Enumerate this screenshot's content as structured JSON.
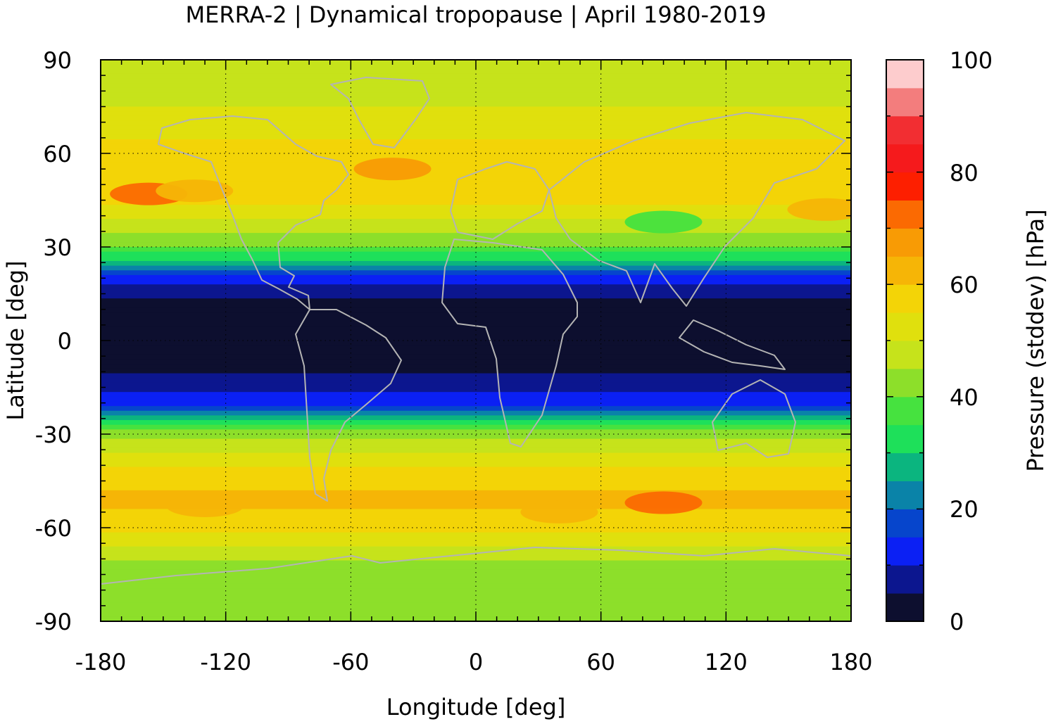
{
  "chart_data": {
    "type": "heatmap",
    "title": "MERRA-2 | Dynamical tropopause | April 1980-2019",
    "xlabel": "Longitude [deg]",
    "ylabel": "Latitude [deg]",
    "xlim": [
      -180,
      180
    ],
    "ylim": [
      -90,
      90
    ],
    "x_ticks": [
      "-180",
      "-120",
      "-60",
      "0",
      "60",
      "120",
      "180"
    ],
    "y_ticks": [
      "90",
      "60",
      "30",
      "0",
      "-30",
      "-60",
      "-90"
    ],
    "grid": true,
    "colorbar": {
      "label": "Pressure (stddev) [hPa]",
      "range": [
        0,
        100
      ],
      "ticks": [
        "0",
        "20",
        "40",
        "60",
        "80",
        "100"
      ],
      "colors": [
        "#0d0f2f",
        "#0c168f",
        "#0b20f4",
        "#0645cc",
        "#0a83a8",
        "#0bb57f",
        "#1ee05a",
        "#46e23f",
        "#8ddf2a",
        "#c6e31b",
        "#e0e00d",
        "#f3d407",
        "#f6b506",
        "#f89b05",
        "#fb6a02",
        "#fd1f00",
        "#f51a1c",
        "#f22e32",
        "#f37d7d",
        "#fdcccd"
      ]
    },
    "bands": [
      {
        "lat": 85,
        "value": 45
      },
      {
        "lat": 75,
        "value": 50
      },
      {
        "lat": 65,
        "value": 55
      },
      {
        "lat": 50,
        "value": 60
      },
      {
        "lat": 40,
        "value": 52
      },
      {
        "lat": 30,
        "value": 40
      },
      {
        "lat": 25,
        "value": 28
      },
      {
        "lat": 20,
        "value": 12
      },
      {
        "lat": 15,
        "value": 6
      },
      {
        "lat": 10,
        "value": 2
      },
      {
        "lat": 0,
        "value": 2
      },
      {
        "lat": -10,
        "value": 4
      },
      {
        "lat": -15,
        "value": 8
      },
      {
        "lat": -20,
        "value": 14
      },
      {
        "lat": -25,
        "value": 30
      },
      {
        "lat": -30,
        "value": 44
      },
      {
        "lat": -40,
        "value": 54
      },
      {
        "lat": -50,
        "value": 62
      },
      {
        "lat": -60,
        "value": 56
      },
      {
        "lat": -70,
        "value": 45
      },
      {
        "lat": -80,
        "value": 40
      },
      {
        "lat": -90,
        "value": 40
      }
    ],
    "highlights": [
      {
        "lon": -157,
        "lat": 47,
        "value": 70
      },
      {
        "lon": -135,
        "lat": 48,
        "value": 62
      },
      {
        "lon": -40,
        "lat": 55,
        "value": 66
      },
      {
        "lon": 90,
        "lat": 38,
        "value": 35
      },
      {
        "lon": 168,
        "lat": 42,
        "value": 62
      },
      {
        "lon": 90,
        "lat": -52,
        "value": 72
      },
      {
        "lon": 40,
        "lat": -55,
        "value": 64
      },
      {
        "lon": -130,
        "lat": -53,
        "value": 63
      }
    ]
  }
}
